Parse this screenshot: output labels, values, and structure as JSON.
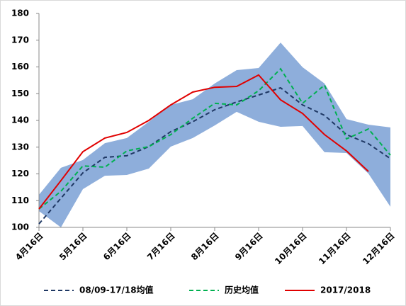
{
  "chart_data": {
    "type": "line",
    "categories": [
      "4月16日",
      null,
      "5月16日",
      null,
      "6月16日",
      null,
      "7月16日",
      null,
      "8月16日",
      null,
      "9月16日",
      null,
      "10月16日",
      null,
      "11月16日",
      null,
      "12月16日"
    ],
    "ylim": [
      100,
      180
    ],
    "yticks": [
      100,
      110,
      120,
      130,
      140,
      150,
      160,
      170,
      180
    ],
    "band": {
      "color": "#8eaedb",
      "upper": [
        112.2,
        122.3,
        125.2,
        131.5,
        133.4,
        139.5,
        145.8,
        147.9,
        153.8,
        158.8,
        159.6,
        169.1,
        159.9,
        153.8,
        140.5,
        138.4,
        137.4
      ],
      "lower": [
        106.1,
        100,
        114.3,
        119.3,
        119.6,
        122,
        130.2,
        133.4,
        138.1,
        143.2,
        139.5,
        137.6,
        137.9,
        128.1,
        127.8,
        120.1,
        107.7
      ]
    },
    "series": [
      {
        "name": "08/09-17/18均值",
        "color": "#1f3864",
        "dash": true,
        "values": [
          101.3,
          110.9,
          120.4,
          126.2,
          126.8,
          130.2,
          135.8,
          139.5,
          144,
          146.9,
          149.5,
          152.2,
          145.8,
          141.9,
          134.7,
          131.3,
          125.7
        ]
      },
      {
        "name": "历史均值",
        "color": "#00b050",
        "dash": true,
        "values": [
          106.9,
          113.5,
          123,
          122.5,
          128.6,
          130.2,
          134.7,
          140.8,
          146.4,
          145.8,
          151.1,
          159.3,
          146.4,
          153.2,
          133.1,
          136.8,
          127
        ]
      },
      {
        "name": "2017/2018",
        "color": "#e00000",
        "dash": false,
        "values": [
          106.9,
          117.5,
          128.3,
          133.4,
          135.5,
          140,
          145.8,
          150.6,
          152.4,
          152.7,
          157,
          147.7,
          142.6,
          134.7,
          128.6,
          120.9,
          null
        ]
      }
    ]
  }
}
